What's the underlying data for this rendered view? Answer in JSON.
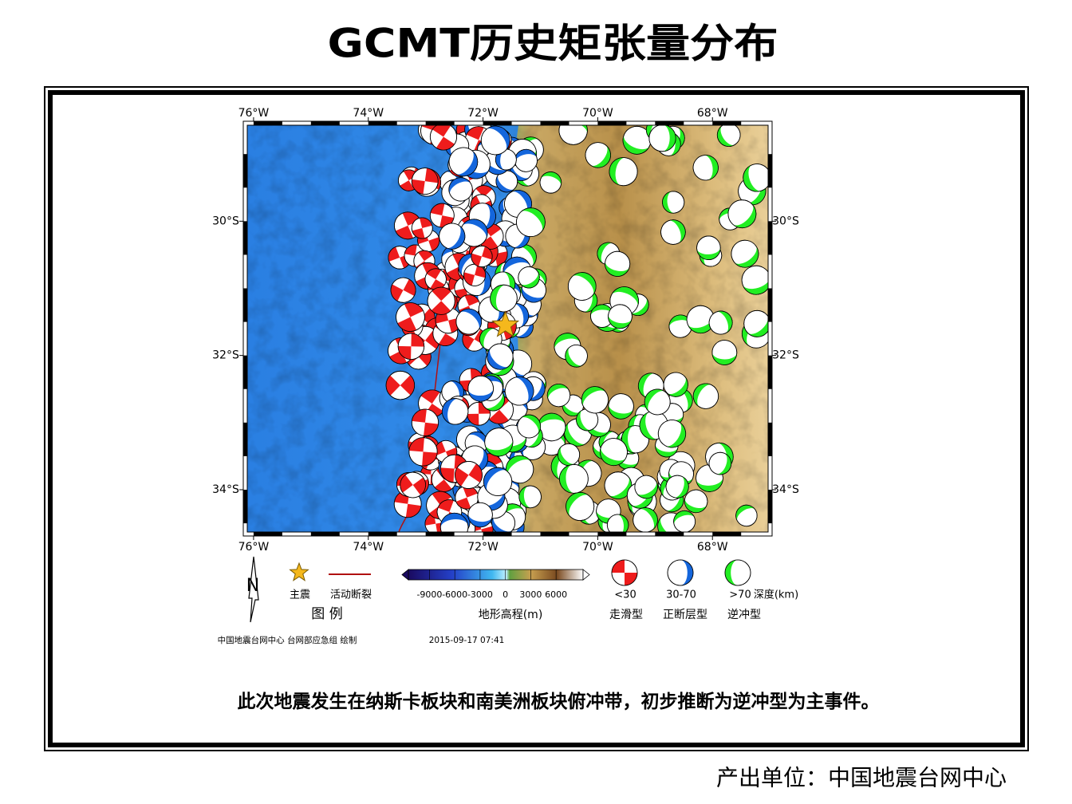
{
  "title": "GCMT历史矩张量分布",
  "map": {
    "xlim": [
      -76.11,
      -67.03
    ],
    "ylim": [
      -34.63,
      -28.57
    ],
    "xticks": [
      {
        "value": -76,
        "label": "76°W"
      },
      {
        "value": -74,
        "label": "74°W"
      },
      {
        "value": -72,
        "label": "72°W"
      },
      {
        "value": -70,
        "label": "70°W"
      },
      {
        "value": -68,
        "label": "68°W"
      }
    ],
    "yticks": [
      {
        "value": -30,
        "label": "30°S"
      },
      {
        "value": -32,
        "label": "32°S"
      },
      {
        "value": -34,
        "label": "34°S"
      }
    ],
    "mainshock": {
      "lon": -71.61,
      "lat": -31.55
    }
  },
  "legend": {
    "north": "N",
    "mainshock": "主震",
    "fault": "活动断裂",
    "title": "图 例",
    "colorbar": {
      "lim": [
        -11500,
        9200
      ],
      "ticks": [
        -9000,
        -6000,
        -3000,
        0,
        3000,
        6000
      ],
      "label": "地形高程(m)"
    },
    "depth": {
      "classes": [
        {
          "label": "<30",
          "color": "#ee1c1c",
          "type": "走滑型"
        },
        {
          "label": "30-70",
          "color": "#1466dc",
          "type": "正断层型"
        },
        {
          "label": ">70",
          "color": "#22ee22",
          "type": "逆冲型"
        }
      ],
      "unit": "深度(km)"
    }
  },
  "credit": "中国地震台网中心 台网部应急组 绘制",
  "timestamp": "2015-09-17 07:41",
  "caption": "此次地震发生在纳斯卡板块和南美洲板块俯冲带，初步推断为逆冲型为主事件。",
  "footer": "产出单位：中国地震台网中心"
}
